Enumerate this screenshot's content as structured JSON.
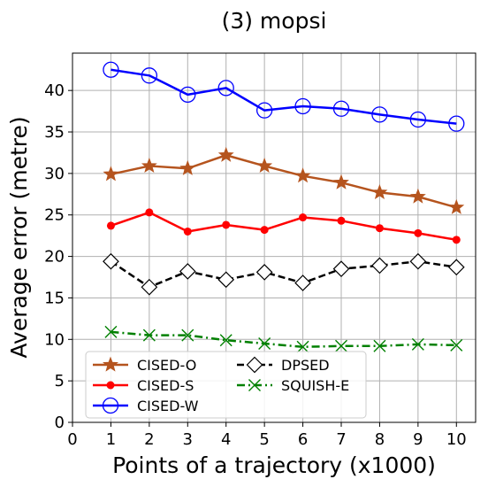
{
  "chart_data": {
    "type": "line",
    "title": "(3) mopsi",
    "xlabel": "Points of a trajectory (x1000)",
    "ylabel": "Average error (metre)",
    "xlim": [
      0,
      10.5
    ],
    "ylim": [
      0,
      44.5
    ],
    "xticks": [
      "0",
      "1",
      "2",
      "3",
      "4",
      "5",
      "6",
      "7",
      "8",
      "9",
      "10"
    ],
    "yticks": [
      "0",
      "5",
      "10",
      "15",
      "20",
      "25",
      "30",
      "35",
      "40"
    ],
    "grid": true,
    "legend_position": "lower-left",
    "x": [
      1,
      2,
      3,
      4,
      5,
      6,
      7,
      8,
      9,
      10
    ],
    "series": [
      {
        "name": "CISED-O",
        "color": "#b5541e",
        "marker": "star",
        "line": "solid",
        "values": [
          29.9,
          30.9,
          30.6,
          32.2,
          30.9,
          29.7,
          28.9,
          27.7,
          27.2,
          25.9
        ]
      },
      {
        "name": "CISED-S",
        "color": "#ff0000",
        "marker": "circle-filled",
        "line": "solid",
        "values": [
          23.7,
          25.3,
          23.0,
          23.8,
          23.2,
          24.7,
          24.3,
          23.4,
          22.8,
          22.0
        ]
      },
      {
        "name": "CISED-W",
        "color": "#0000ff",
        "marker": "circle-open",
        "line": "solid",
        "values": [
          42.5,
          41.8,
          39.5,
          40.3,
          37.6,
          38.1,
          37.8,
          37.1,
          36.5,
          36.0
        ]
      },
      {
        "name": "DPSED",
        "color": "#000000",
        "marker": "diamond-open",
        "line": "dashed",
        "values": [
          19.4,
          16.3,
          18.2,
          17.2,
          18.1,
          16.8,
          18.5,
          18.9,
          19.4,
          18.7
        ]
      },
      {
        "name": "SQUISH-E",
        "color": "#008000",
        "marker": "x",
        "line": "dashdot",
        "values": [
          10.9,
          10.5,
          10.5,
          9.9,
          9.5,
          9.1,
          9.2,
          9.2,
          9.4,
          9.3
        ]
      }
    ]
  }
}
